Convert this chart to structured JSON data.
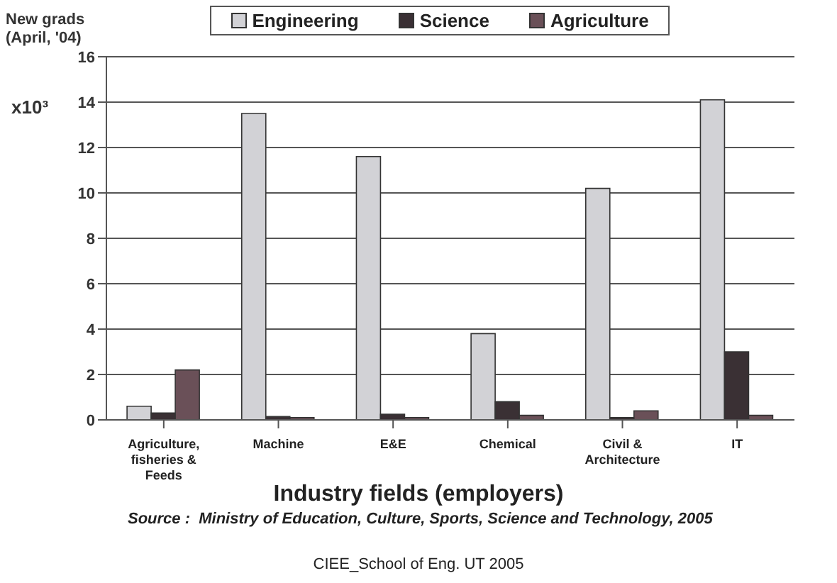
{
  "chart_data": {
    "type": "bar",
    "ylabel": "New grads (April, '04)",
    "xlabel": "Industry fields (employers)",
    "categories": [
      "Agriculture, fisheries & Feeds",
      "Machine",
      "E&E",
      "Chemical",
      "Civil & Architecture",
      "IT"
    ],
    "series": [
      {
        "name": "Engineering",
        "color": "#d2d2d6",
        "values": [
          0.6,
          13.5,
          11.6,
          3.8,
          10.2,
          14.1
        ]
      },
      {
        "name": "Science",
        "color": "#3a3034",
        "values": [
          0.3,
          0.15,
          0.25,
          0.8,
          0.1,
          3.0
        ]
      },
      {
        "name": "Agriculture",
        "color": "#6a5058",
        "values": [
          2.2,
          0.1,
          0.1,
          0.2,
          0.4,
          0.2
        ]
      }
    ],
    "ylim": [
      0,
      16
    ],
    "yticks": [
      0,
      2,
      4,
      6,
      8,
      10,
      12,
      14,
      16
    ],
    "grid": "y",
    "legend": "top",
    "annotations": [
      "x10³",
      "Source :  Ministry of Education, Culture, Sports, Science and Technology, 2005",
      "CIEE_School of Eng. UT 2005"
    ]
  }
}
